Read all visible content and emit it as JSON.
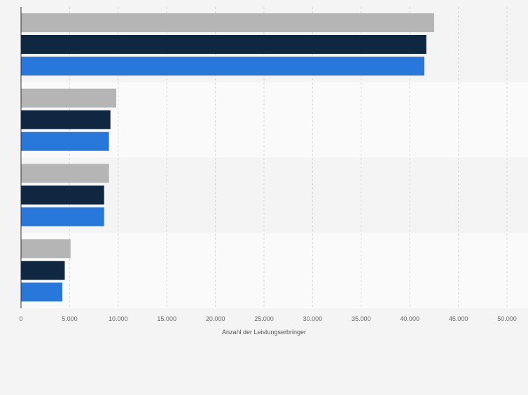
{
  "chart_data": {
    "type": "bar",
    "orientation": "horizontal",
    "categories": [
      "",
      "",
      "",
      ""
    ],
    "series": [
      {
        "values": [
          42500,
          9800,
          9050,
          5100
        ]
      },
      {
        "values": [
          41700,
          9200,
          8550,
          4500
        ]
      },
      {
        "values": [
          41500,
          9050,
          8550,
          4250
        ]
      }
    ],
    "xlabel": "Anzahl der Leistungserbringer",
    "ylabel": "",
    "xlim": [
      0,
      50000
    ],
    "xticks": [
      0,
      5000,
      10000,
      15000,
      20000,
      25000,
      30000,
      35000,
      40000,
      45000,
      50000
    ],
    "xtick_labels": [
      "0",
      "5.000",
      "10.000",
      "15.000",
      "20.000",
      "25.000",
      "30.000",
      "35.000",
      "40.000",
      "45.000",
      "50.000"
    ],
    "grid": true,
    "legend": "none"
  },
  "colors": {
    "series": [
      "#b5b5b5",
      "#0f2741",
      "#2878dc"
    ],
    "band_even": "#f4f4f4",
    "band_odd": "#fafafa",
    "grid": "#d8d8d8",
    "axis": "#333333",
    "tick_text": "#666666"
  }
}
